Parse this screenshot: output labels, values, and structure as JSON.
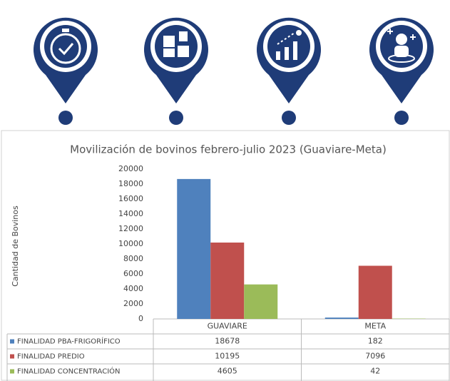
{
  "chart_data": {
    "type": "bar",
    "title": "Movilización de bovinos febrero-julio 2023 (Guaviare-Meta)",
    "y_label": "Cantidad de Bovinos",
    "categories": [
      "GUAVIARE",
      "META"
    ],
    "series": [
      {
        "name": "FINALIDAD PBA-FRIGORÍFICO",
        "color": "#4f81bd",
        "values": [
          18678,
          182
        ]
      },
      {
        "name": "FINALIDAD PREDIO",
        "color": "#c0504d",
        "values": [
          10195,
          7096
        ]
      },
      {
        "name": "FINALIDAD CONCENTRACIÓN",
        "color": "#9bbb59",
        "values": [
          4605,
          42
        ]
      }
    ],
    "ylim": [
      0,
      20000
    ],
    "yticks": [
      0,
      2000,
      4000,
      6000,
      8000,
      10000,
      12000,
      14000,
      16000,
      18000,
      20000
    ],
    "grid": false
  }
}
